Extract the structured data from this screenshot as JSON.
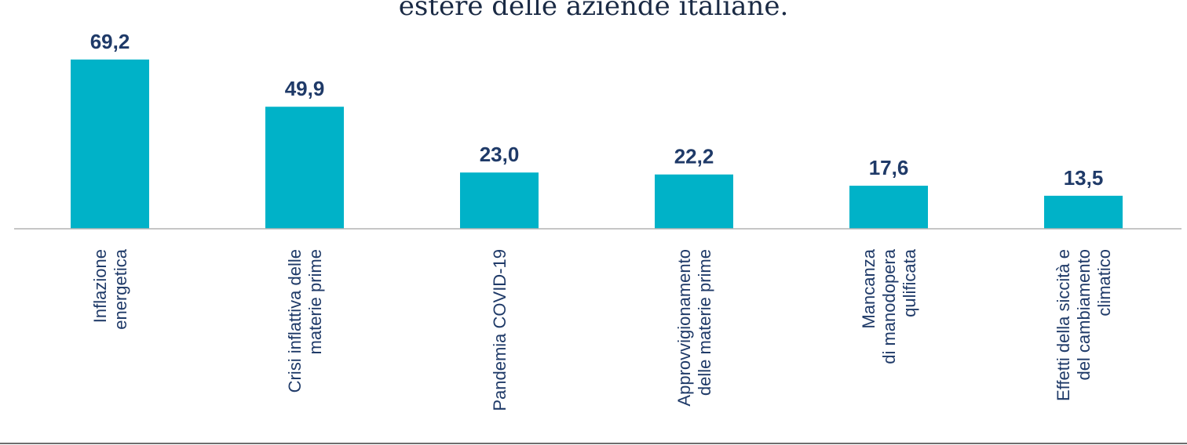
{
  "chart_data": {
    "type": "bar",
    "title": "estere delle aziende italiane.",
    "categories": [
      [
        "Inflazione",
        "energetica"
      ],
      [
        "Crisi inflattiva delle",
        "materie prime"
      ],
      [
        "Pandemia COVID-19"
      ],
      [
        "Approvvigionamento",
        "delle materie prime"
      ],
      [
        "Mancanza",
        "di manodopera",
        "qulificata"
      ],
      [
        "Effetti della siccità e",
        "del cambiamento",
        "climatico"
      ]
    ],
    "values": [
      69.2,
      49.9,
      23.0,
      22.2,
      17.6,
      13.5
    ],
    "value_labels": [
      "69,2",
      "49,9",
      "23,0",
      "22,2",
      "17,6",
      "13,5"
    ],
    "xlabel": "",
    "ylabel": "",
    "ylim": [
      0,
      70
    ],
    "grid": false,
    "colors": {
      "bar": "#00b2c8",
      "value_label": "#1f3a68",
      "category_label": "#1f3a68",
      "axis": "#b4b4b4",
      "bottom_rule": "#6e6e6e"
    }
  }
}
